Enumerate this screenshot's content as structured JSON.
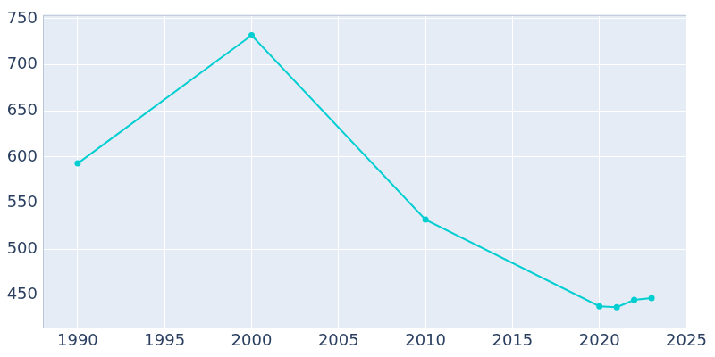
{
  "chart_data": {
    "type": "line",
    "x": [
      1990,
      2000,
      2010,
      2020,
      2021,
      2022,
      2023
    ],
    "values": [
      593,
      732,
      532,
      438,
      437,
      445,
      447
    ],
    "color": "#00ced1",
    "marker": "circle",
    "xlim": [
      1988,
      2025
    ],
    "xticks": [
      1990,
      1995,
      2000,
      2005,
      2010,
      2015,
      2020,
      2025
    ],
    "ylim": [
      414,
      754
    ],
    "yticks": [
      450,
      500,
      550,
      600,
      650,
      700,
      750
    ],
    "grid": true
  }
}
